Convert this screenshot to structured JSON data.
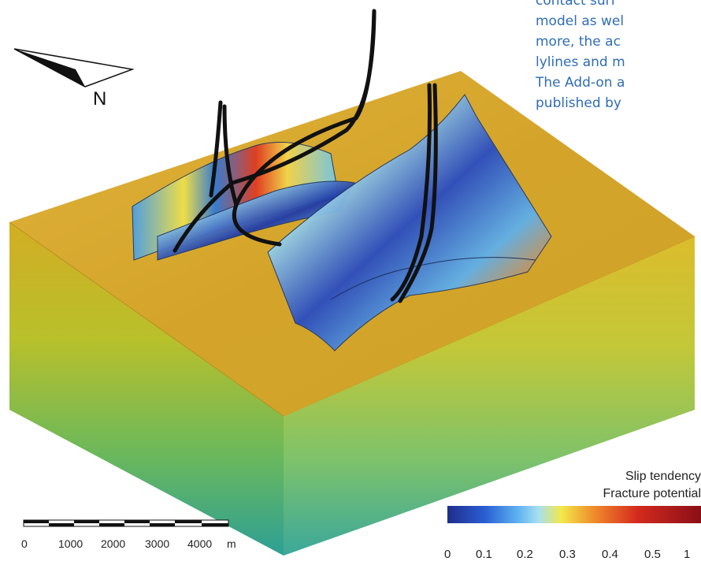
{
  "text_block": {
    "lines": [
      "contact surf",
      "model as wel",
      "more,  the  ac",
      "lylines and m",
      "The Add-on a",
      "published by"
    ]
  },
  "north_arrow": {
    "label": "N",
    "icon": "north-arrow-icon"
  },
  "colorbar": {
    "title_1": "Slip tendency",
    "title_2": "Fracture potential",
    "ticks": [
      "0",
      "0.1",
      "0.2",
      "0.3",
      "0.4",
      "0.5",
      "1"
    ],
    "colors": [
      "#1f2d8c",
      "#2b5fd4",
      "#5fb3f0",
      "#a8e0f0",
      "#f2e84a",
      "#f08a2a",
      "#d42a1e",
      "#8a0f18"
    ]
  },
  "scale_bar": {
    "ticks": [
      "0",
      "1000",
      "2000",
      "3000",
      "4000"
    ],
    "unit": "m"
  },
  "colors": {
    "block_top": "#d9a82a",
    "block_side_top": "#d9b02a",
    "block_side_bottom": "#2fa592",
    "wells": "#111111",
    "text_blue": "#2f6db5"
  }
}
